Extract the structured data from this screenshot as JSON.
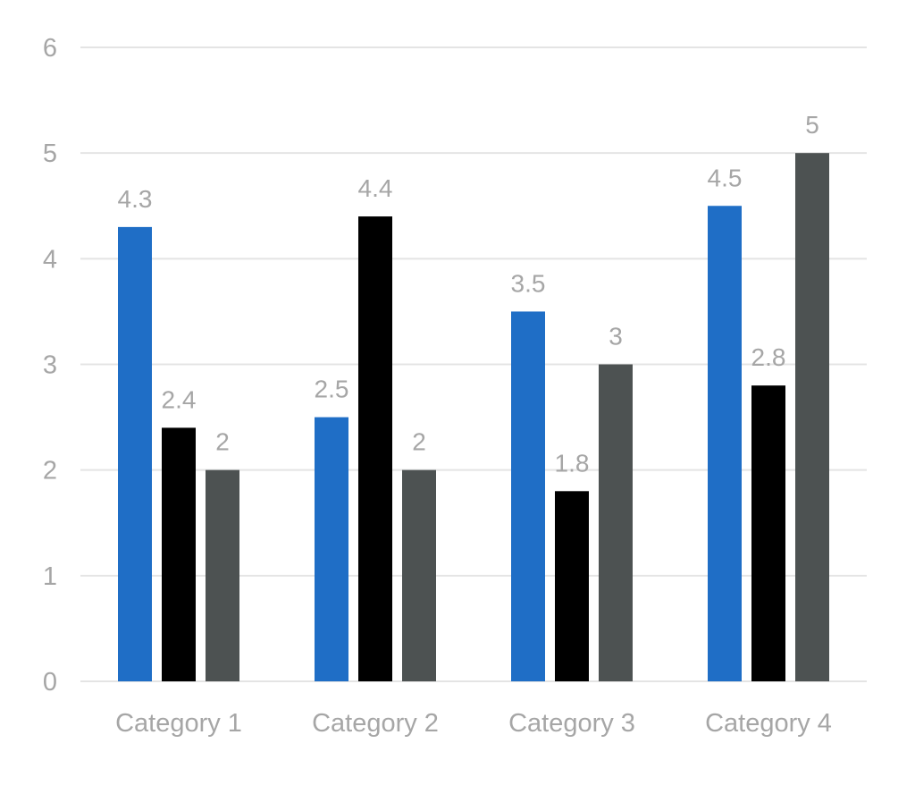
{
  "chart_data": {
    "type": "bar",
    "categories": [
      "Category 1",
      "Category 2",
      "Category 3",
      "Category 4"
    ],
    "series": [
      {
        "values": [
          4.3,
          2.5,
          3.5,
          4.5
        ],
        "color": "#1f6ec6"
      },
      {
        "values": [
          2.4,
          4.4,
          1.8,
          2.8
        ],
        "color": "#000000"
      },
      {
        "values": [
          2,
          2,
          3,
          5
        ],
        "color": "#4d5252"
      }
    ],
    "yticks": [
      0,
      1,
      2,
      3,
      4,
      5,
      6
    ],
    "ylim": [
      0,
      6
    ],
    "title": "",
    "xlabel": "",
    "ylabel": "",
    "grid": true,
    "legend": "none",
    "data_labels": true,
    "label_color": "#a6a6a6",
    "grid_color": "#e4e4e4"
  }
}
